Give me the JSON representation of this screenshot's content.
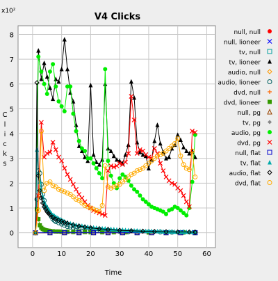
{
  "chart_data": {
    "type": "line",
    "title": "V4 Clicks",
    "xlabel": "Time",
    "ylabel": "Clicks",
    "y_multiplier_label": "x10²",
    "y_unit_scale": 100,
    "xlim": [
      -5,
      63
    ],
    "ylim": [
      -0.6,
      8.35
    ],
    "xticks": [
      0,
      10,
      20,
      30,
      40,
      50,
      60
    ],
    "yticks": [
      0,
      1,
      2,
      3,
      4,
      5,
      6,
      7,
      8
    ],
    "grid": true,
    "legend_position": "right",
    "series": [
      {
        "name": "null, null",
        "color": "#ff0000",
        "marker": "dot",
        "x": [
          1,
          6,
          11,
          16,
          21,
          26,
          31,
          36,
          41,
          46,
          51,
          56
        ],
        "y": [
          0,
          0,
          0,
          0,
          0,
          0,
          0,
          0,
          0,
          0,
          0,
          0
        ]
      },
      {
        "name": "null, lioneer",
        "color": "#0000ff",
        "marker": "x",
        "x": [
          1,
          6,
          11,
          16,
          21,
          26,
          31,
          36,
          41,
          46,
          51,
          56
        ],
        "y": [
          0,
          0,
          0,
          0,
          0,
          0,
          0,
          0,
          0,
          0,
          0,
          0
        ]
      },
      {
        "name": "tv, null",
        "color": "#00a0a0",
        "marker": "square-open",
        "x": [
          1,
          6,
          11,
          16,
          21,
          26,
          31,
          36,
          41,
          46,
          51,
          56
        ],
        "y": [
          0,
          0,
          0,
          0,
          0,
          0,
          0,
          0,
          0,
          0,
          0,
          0
        ]
      },
      {
        "name": "tv, lioneer",
        "color": "#000000",
        "marker": "triangle",
        "x": [
          1,
          2,
          3,
          4,
          5,
          6,
          7,
          8,
          9,
          10,
          11,
          12,
          13,
          14,
          15,
          16,
          17,
          18,
          19,
          20,
          21,
          22,
          23,
          24,
          25,
          26,
          27,
          28,
          29,
          30,
          31,
          32,
          33,
          34,
          35,
          36,
          37,
          38,
          39,
          40,
          41,
          42,
          43,
          44,
          45,
          46,
          47,
          48,
          49,
          50,
          51,
          52,
          53,
          54,
          55,
          56
        ],
        "y": [
          0,
          7.35,
          6.2,
          6.85,
          6.3,
          5.85,
          5.4,
          6.2,
          6.1,
          6.6,
          7.8,
          6.6,
          5.65,
          5.3,
          4.35,
          3.5,
          3.3,
          3.05,
          2.9,
          5.95,
          3.15,
          2.85,
          2.75,
          2.95,
          6.0,
          3.4,
          3.3,
          3.1,
          2.95,
          2.9,
          2.8,
          3.15,
          3.55,
          6.1,
          5.45,
          3.65,
          3.25,
          3.15,
          3.1,
          2.6,
          2.95,
          3.7,
          4.35,
          3.6,
          3.25,
          3.0,
          3.05,
          3.4,
          3.55,
          3.95,
          3.75,
          3.45,
          3.3,
          3.2,
          3.3,
          3.05
        ]
      },
      {
        "name": "audio, null",
        "color": "#ff9900",
        "marker": "diamond-open",
        "x": [
          1,
          6,
          11,
          16,
          21,
          26,
          31,
          36,
          41,
          46,
          51,
          56
        ],
        "y": [
          0,
          0,
          0,
          0,
          0,
          0,
          0,
          0,
          0,
          0,
          0,
          0
        ]
      },
      {
        "name": "audio, lioneer",
        "color": "#006060",
        "marker": "circle-open",
        "x": [
          1,
          1.5,
          2,
          2.5,
          3,
          3.5,
          4,
          4.5,
          5,
          5.5,
          6,
          6.5,
          7,
          7.5,
          8,
          9,
          10,
          11,
          12,
          13,
          14,
          15,
          16,
          18,
          20,
          22,
          24,
          26,
          28,
          30,
          33,
          36,
          40,
          44,
          48,
          52,
          56
        ],
        "y": [
          0,
          1.35,
          2.5,
          2.4,
          1.95,
          1.55,
          1.3,
          1.05,
          0.95,
          0.85,
          0.75,
          0.65,
          0.55,
          0.5,
          0.45,
          0.4,
          0.35,
          0.3,
          0.25,
          0.23,
          0.2,
          0.18,
          0.15,
          0.13,
          0.1,
          0.09,
          0.08,
          0.07,
          0.06,
          0.05,
          0.04,
          0.04,
          0.03,
          0.03,
          0.02,
          0.02,
          0.02
        ]
      },
      {
        "name": "dvd, null",
        "color": "#ff6600",
        "marker": "plus",
        "x": [
          1,
          6,
          11,
          16,
          21,
          26,
          31,
          36,
          41,
          46,
          51,
          56
        ],
        "y": [
          0,
          0,
          0,
          0,
          0,
          0,
          0,
          0,
          0,
          0,
          0,
          0
        ]
      },
      {
        "name": "dvd, lioneer",
        "color": "#339900",
        "marker": "square",
        "x": [
          1,
          1.5,
          2,
          2.5,
          3,
          3.5,
          4,
          4.5,
          5,
          5.5,
          6,
          7,
          8,
          9,
          10,
          12,
          14,
          16,
          18,
          20,
          24,
          28,
          32,
          36,
          40,
          46,
          52,
          56
        ],
        "y": [
          0,
          0.95,
          0.55,
          0.3,
          0.2,
          0.15,
          0.12,
          0.1,
          0.09,
          0.08,
          0.07,
          0.06,
          0.05,
          0.05,
          0.04,
          0.04,
          0.03,
          0.03,
          0.03,
          0.02,
          0.02,
          0.02,
          0.02,
          0.01,
          0.01,
          0.01,
          0.01,
          0.01
        ]
      },
      {
        "name": "null, pg",
        "color": "#994400",
        "marker": "triangle-open",
        "x": [
          1,
          6,
          11,
          16,
          21,
          26,
          31,
          36,
          41,
          46,
          51,
          56
        ],
        "y": [
          0,
          0,
          0,
          0,
          0,
          0,
          0,
          0,
          0,
          0,
          0,
          0
        ]
      },
      {
        "name": "tv, pg",
        "color": "#888888",
        "marker": "diamond",
        "x": [
          1,
          6,
          11,
          16,
          21,
          26,
          31,
          36,
          41,
          46,
          51,
          56
        ],
        "y": [
          0,
          0,
          0,
          0,
          0,
          0,
          0,
          0,
          0,
          0,
          0,
          0
        ]
      },
      {
        "name": "audio, pg",
        "color": "#00ee00",
        "marker": "dot",
        "x": [
          1,
          2,
          3,
          4,
          5,
          6,
          7,
          8,
          9,
          10,
          11,
          12,
          13,
          14,
          15,
          16,
          17,
          18,
          19,
          20,
          21,
          22,
          23,
          24,
          25,
          26,
          27,
          28,
          29,
          30,
          31,
          32,
          33,
          34,
          35,
          36,
          37,
          38,
          39,
          40,
          41,
          42,
          43,
          44,
          45,
          46,
          47,
          48,
          49,
          50,
          51,
          52,
          53,
          54,
          55,
          56
        ],
        "y": [
          0,
          7.1,
          6.5,
          6.0,
          5.6,
          6.5,
          6.8,
          5.9,
          5.3,
          5.1,
          4.9,
          5.9,
          5.9,
          4.8,
          4.1,
          3.7,
          3.4,
          3.3,
          3.0,
          3.0,
          2.8,
          2.6,
          2.4,
          2.2,
          6.6,
          2.9,
          2.3,
          2.0,
          1.8,
          2.2,
          2.35,
          2.25,
          2.1,
          1.9,
          1.75,
          1.65,
          1.5,
          1.35,
          1.25,
          1.15,
          1.05,
          1.0,
          0.95,
          0.9,
          0.85,
          0.75,
          0.9,
          0.95,
          1.05,
          1.0,
          0.9,
          0.8,
          0.7,
          1.0,
          2.05,
          3.95
        ]
      },
      {
        "name": "dvd, pg",
        "color": "#ff0000",
        "marker": "x",
        "x": [
          1,
          2,
          3,
          4,
          5,
          6,
          7,
          8,
          9,
          10,
          11,
          12,
          13,
          14,
          15,
          16,
          17,
          18,
          19,
          20,
          21,
          22,
          23,
          24,
          25,
          26,
          27,
          28,
          29,
          30,
          31,
          32,
          33,
          34,
          35,
          36,
          37,
          38,
          39,
          40,
          41,
          42,
          43,
          44,
          45,
          46,
          47,
          48,
          49,
          50,
          51,
          52,
          53,
          54,
          55,
          56
        ],
        "y": [
          0,
          1.5,
          4.45,
          3.05,
          3.2,
          3.25,
          3.65,
          3.35,
          3.05,
          2.9,
          2.6,
          2.35,
          2.15,
          1.95,
          1.75,
          1.55,
          1.4,
          1.25,
          1.1,
          1.0,
          0.9,
          0.85,
          0.8,
          0.75,
          0.7,
          2.5,
          2.7,
          2.65,
          2.7,
          2.8,
          2.75,
          2.85,
          3.2,
          5.5,
          4.55,
          3.2,
          3.35,
          3.3,
          3.15,
          3.05,
          3.0,
          3.4,
          3.2,
          2.8,
          2.5,
          2.25,
          2.1,
          2.0,
          1.95,
          1.8,
          1.7,
          1.5,
          1.25,
          1.05,
          4.1,
          4.05
        ]
      },
      {
        "name": "null, flat",
        "color": "#0000cc",
        "marker": "square-open",
        "x": [
          1,
          6,
          11,
          16,
          21,
          26,
          31,
          36,
          41,
          46,
          51,
          56
        ],
        "y": [
          0,
          0,
          0,
          0,
          0,
          0,
          0,
          0,
          0,
          0,
          0,
          0
        ]
      },
      {
        "name": "tv, flat",
        "color": "#00aaaa",
        "marker": "triangle",
        "x": [
          1,
          1.5,
          2,
          2.5,
          3,
          3.5,
          4,
          4.5,
          5,
          5.5,
          6,
          6.5,
          7,
          7.5,
          8,
          8.5,
          9,
          9.5,
          10,
          10.5,
          11,
          12,
          13,
          14,
          15,
          16,
          17,
          18,
          19,
          20,
          21,
          22,
          23,
          24,
          25,
          26,
          27,
          28,
          29,
          30,
          31,
          32,
          33,
          34,
          35,
          36,
          37,
          38,
          39,
          40,
          41,
          42,
          43,
          44,
          45,
          46,
          47,
          48,
          49,
          50,
          51,
          52,
          53,
          54,
          55,
          56
        ],
        "y": [
          0,
          3.35,
          2.4,
          2.05,
          1.75,
          1.45,
          1.25,
          1.1,
          1.0,
          0.92,
          0.85,
          0.78,
          0.72,
          0.68,
          0.64,
          0.6,
          0.57,
          0.54,
          0.51,
          0.48,
          0.46,
          0.42,
          0.38,
          0.35,
          0.32,
          0.3,
          0.28,
          0.26,
          0.24,
          0.22,
          0.21,
          0.2,
          0.19,
          0.18,
          0.17,
          0.16,
          0.15,
          0.14,
          0.13,
          0.12,
          0.12,
          0.11,
          0.1,
          0.1,
          0.09,
          0.09,
          0.08,
          0.08,
          0.07,
          0.07,
          0.07,
          0.06,
          0.06,
          0.06,
          0.05,
          0.05,
          0.05,
          0.05,
          0.04,
          0.04,
          0.04,
          0.04,
          0.04,
          0.03,
          0.03,
          0.03
        ]
      },
      {
        "name": "audio, flat",
        "color": "#000000",
        "marker": "diamond-open",
        "x": [
          1,
          1.5,
          2,
          2.5,
          3,
          3.5,
          4,
          4.5,
          5,
          5.5,
          6,
          7,
          8,
          9,
          10,
          11,
          12,
          14,
          16,
          18,
          20,
          23,
          26,
          30,
          34,
          38,
          42,
          46,
          50,
          54,
          56
        ],
        "y": [
          0,
          6.05,
          2.3,
          1.7,
          1.4,
          1.2,
          1.05,
          0.95,
          0.85,
          0.78,
          0.72,
          0.62,
          0.55,
          0.5,
          0.46,
          0.42,
          0.38,
          0.32,
          0.27,
          0.23,
          0.2,
          0.16,
          0.13,
          0.1,
          0.08,
          0.06,
          0.05,
          0.04,
          0.03,
          0.03,
          0.02
        ]
      },
      {
        "name": "dvd, flat",
        "color": "#ffaa00",
        "marker": "circle-open",
        "x": [
          1,
          2,
          3,
          4,
          5,
          6,
          7,
          8,
          9,
          10,
          11,
          12,
          13,
          14,
          15,
          16,
          17,
          18,
          19,
          20,
          21,
          22,
          23,
          24,
          25,
          26,
          27,
          28,
          29,
          30,
          31,
          32,
          33,
          34,
          35,
          36,
          37,
          38,
          39,
          40,
          41,
          42,
          43,
          44,
          45,
          46,
          47,
          48,
          49,
          50,
          51,
          52,
          53,
          54,
          55,
          56
        ],
        "y": [
          0,
          0.9,
          4.1,
          1.7,
          2.0,
          2.05,
          1.9,
          1.85,
          1.75,
          1.7,
          1.65,
          1.6,
          1.55,
          1.45,
          1.35,
          1.3,
          1.2,
          1.1,
          1.05,
          1.0,
          0.95,
          0.9,
          0.85,
          1.1,
          2.7,
          1.85,
          1.8,
          1.85,
          1.9,
          1.95,
          2.05,
          2.15,
          2.25,
          2.35,
          2.4,
          2.5,
          2.55,
          2.6,
          2.7,
          2.8,
          2.9,
          3.0,
          3.1,
          3.15,
          3.2,
          3.3,
          3.4,
          3.5,
          3.6,
          3.8,
          3.1,
          2.75,
          2.6,
          2.55,
          3.3,
          2.25
        ]
      }
    ]
  }
}
